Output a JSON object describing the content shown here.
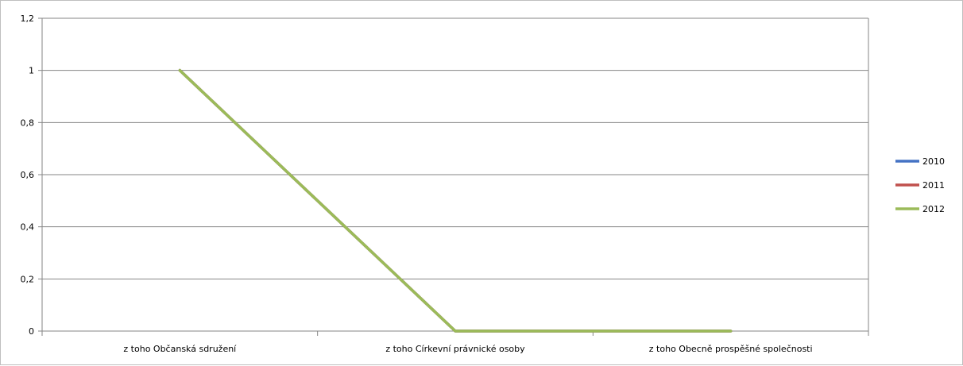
{
  "chart_data": {
    "type": "line",
    "categories": [
      "z toho Občanská sdružení",
      "z toho Církevní právnické osoby",
      "z toho Obecně prospěšné společnosti"
    ],
    "series": [
      {
        "name": "2010",
        "values": [
          1,
          0,
          0
        ],
        "color": "#4472C4"
      },
      {
        "name": "2011",
        "values": [
          1,
          0,
          0
        ],
        "color": "#C0504D"
      },
      {
        "name": "2012",
        "values": [
          1,
          0,
          0
        ],
        "color": "#9BBB59"
      }
    ],
    "yticks": [
      "0",
      "0,2",
      "0,4",
      "0,6",
      "0,8",
      "1",
      "1,2"
    ],
    "ylim": [
      0,
      1.2
    ],
    "grid": true,
    "legend": "right"
  }
}
